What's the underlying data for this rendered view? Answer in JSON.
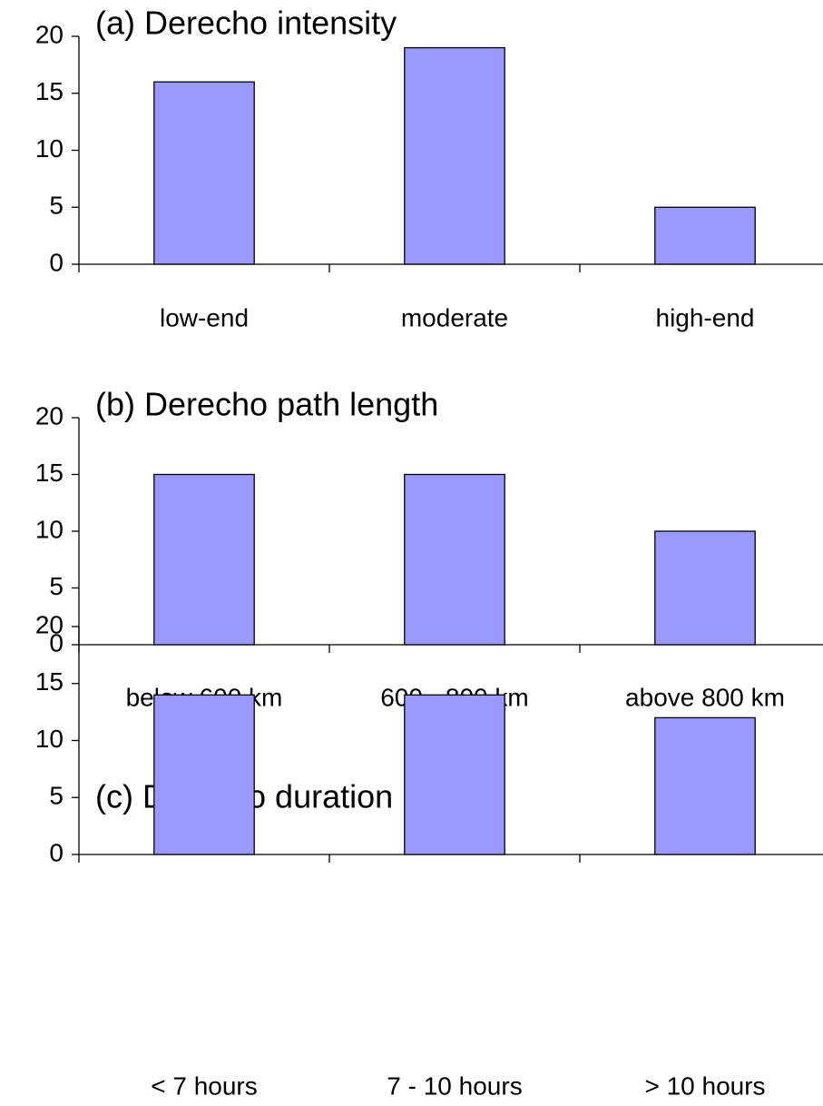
{
  "chart_data": [
    {
      "type": "bar",
      "title": "(a) Derecho intensity",
      "categories": [
        "low-end",
        "moderate",
        "high-end"
      ],
      "values": [
        16,
        19,
        5
      ],
      "color": "#9999ff",
      "ylim": [
        0,
        20
      ],
      "yticks": [
        0,
        5,
        10,
        15,
        20
      ]
    },
    {
      "type": "bar",
      "title": "(b) Derecho path length",
      "categories": [
        "below 600 km",
        "600 - 800 km",
        "above 800 km"
      ],
      "values": [
        15,
        15,
        10
      ],
      "color": "#9999ff",
      "ylim": [
        0,
        20
      ],
      "yticks": [
        0,
        5,
        10,
        15,
        20
      ]
    },
    {
      "type": "bar",
      "title": "(c) Derecho duration",
      "categories": [
        "< 7 hours",
        "7 - 10 hours",
        "> 10 hours"
      ],
      "values": [
        14,
        14,
        12
      ],
      "color": "#9999ff",
      "ylim": [
        0,
        20
      ],
      "yticks": [
        0,
        5,
        10,
        15,
        20
      ]
    }
  ]
}
